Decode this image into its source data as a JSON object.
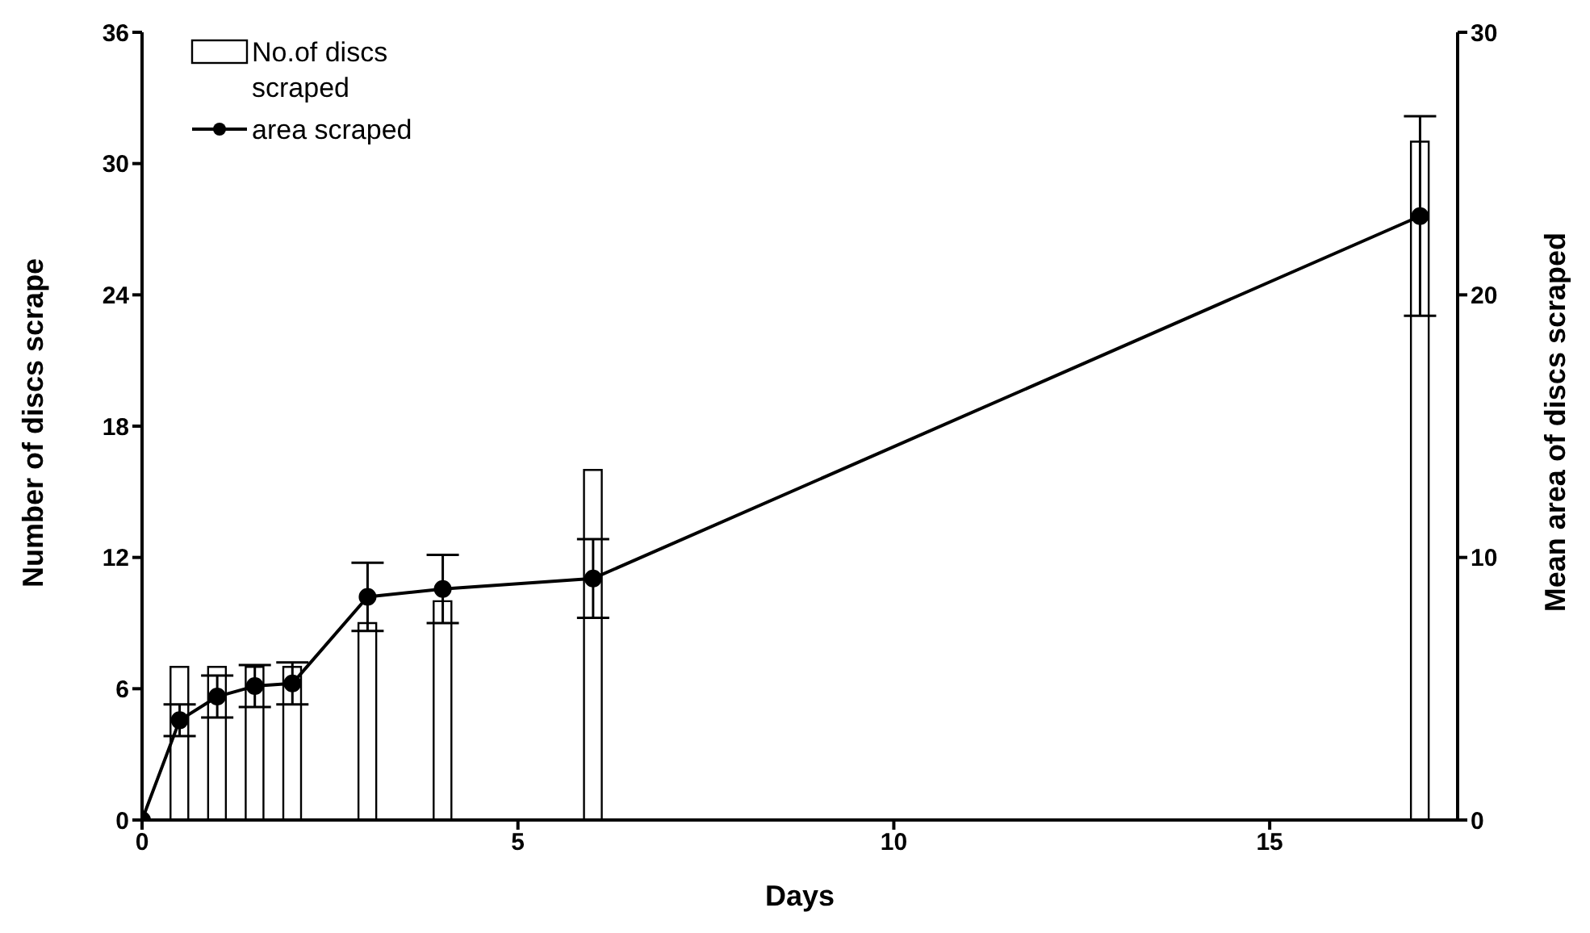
{
  "chart_data": {
    "type": "bar",
    "xlabel": "Days",
    "ylabel": "Number of discs scrape",
    "y2label": "Mean area of discs scraped",
    "xlim": [
      0,
      17.5
    ],
    "xticks": [
      0,
      5,
      10,
      15
    ],
    "ylim": [
      0,
      36
    ],
    "yticks": [
      0,
      6,
      12,
      18,
      24,
      30,
      36
    ],
    "y2lim": [
      0,
      30
    ],
    "y2ticks": [
      0,
      10,
      20,
      30
    ],
    "legend": "top left",
    "series": [
      {
        "name": "No.of discs scraped",
        "color": "#ffffff",
        "x": [
          0.5,
          1,
          1.5,
          2,
          3,
          4,
          6,
          17
        ],
        "values": [
          7,
          7,
          7,
          7,
          9,
          10,
          16,
          31
        ]
      },
      {
        "name": "area scraped",
        "type": "line",
        "axis": "y2",
        "color": "#000000",
        "marker": "circle",
        "line_style": "solid",
        "x": [
          0,
          0.5,
          1,
          1.5,
          2,
          3,
          4,
          6,
          17
        ],
        "values": [
          0,
          3.8,
          4.7,
          5.1,
          5.2,
          8.5,
          8.8,
          9.2,
          23.0
        ],
        "errors": [
          null,
          0.6,
          0.8,
          0.8,
          0.8,
          1.3,
          1.3,
          1.5,
          3.8
        ]
      }
    ]
  }
}
